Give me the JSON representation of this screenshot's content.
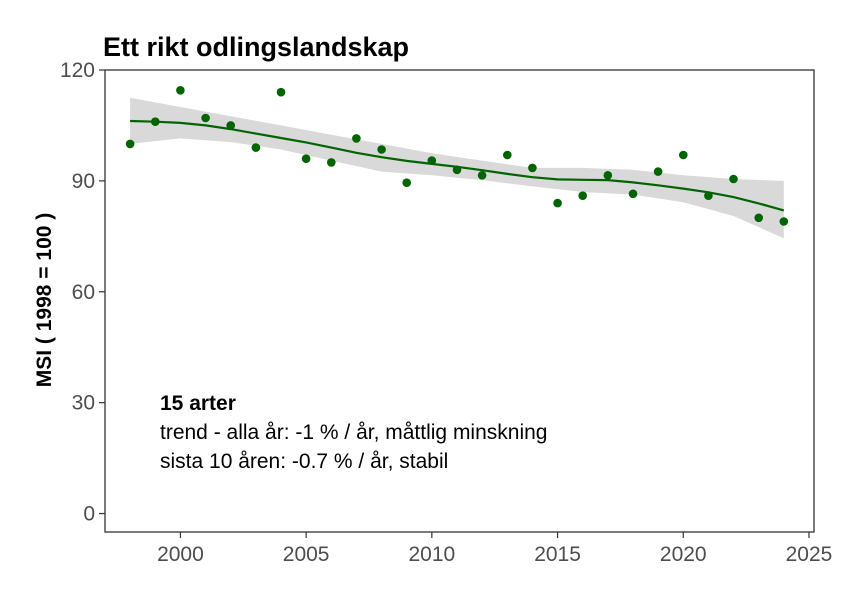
{
  "chart_data": {
    "type": "scatter",
    "title": "Ett rikt odlingslandskap",
    "xlabel": "",
    "ylabel": "MSI ( 1998 = 100 )",
    "xlim": [
      1997.0,
      2025.2
    ],
    "ylim": [
      -5,
      120
    ],
    "x_ticks": [
      2000,
      2005,
      2010,
      2015,
      2020,
      2025
    ],
    "y_ticks": [
      0,
      30,
      60,
      90,
      120
    ],
    "grid": false,
    "points": {
      "name": "MSI",
      "color": "#006400",
      "x": [
        1998,
        1999,
        2000,
        2001,
        2002,
        2003,
        2004,
        2005,
        2006,
        2007,
        2008,
        2009,
        2010,
        2011,
        2012,
        2013,
        2014,
        2015,
        2016,
        2017,
        2018,
        2019,
        2020,
        2021,
        2022,
        2023,
        2024
      ],
      "y": [
        100,
        106,
        114.5,
        107,
        105,
        99,
        114,
        96,
        95,
        101.5,
        98.5,
        89.5,
        95.5,
        93,
        91.5,
        97,
        93.5,
        84,
        86,
        91.5,
        86.5,
        92.5,
        97,
        86,
        90.5,
        80,
        79
      ]
    },
    "trend": {
      "name": "smoothed trend",
      "color": "#006400",
      "x": [
        1998,
        1999,
        2000,
        2001,
        2002,
        2003,
        2004,
        2005,
        2006,
        2007,
        2008,
        2009,
        2010,
        2011,
        2012,
        2013,
        2014,
        2015,
        2016,
        2017,
        2018,
        2019,
        2020,
        2021,
        2022,
        2023,
        2024
      ],
      "y": [
        106.2,
        106.0,
        105.7,
        105.0,
        104.0,
        102.8,
        101.6,
        100.4,
        99.0,
        97.6,
        96.4,
        95.4,
        94.6,
        93.8,
        92.9,
        91.9,
        91.0,
        90.4,
        90.3,
        90.2,
        89.6,
        88.8,
        87.9,
        86.9,
        85.6,
        83.9,
        82.0
      ]
    },
    "confidence_band": {
      "color": "#d9d9d9",
      "x": [
        1998,
        2000,
        2002,
        2004,
        2006,
        2008,
        2010,
        2012,
        2014,
        2016,
        2018,
        2020,
        2022,
        2024
      ],
      "lower": [
        100.0,
        101.5,
        100.5,
        98.5,
        95.5,
        92.5,
        91.5,
        90.2,
        88.5,
        87.0,
        86.3,
        84.2,
        80.5,
        74.5
      ],
      "upper": [
        112.5,
        110.0,
        107.5,
        105.0,
        102.5,
        100.0,
        97.5,
        95.5,
        93.5,
        93.5,
        93.0,
        91.5,
        90.5,
        90.0
      ]
    },
    "annotation": {
      "heading": "15 arter",
      "line1": "trend - alla år: -1 % / år, måttlig minskning",
      "line2": "sista 10 åren: -0.7 % / år, stabil"
    }
  }
}
